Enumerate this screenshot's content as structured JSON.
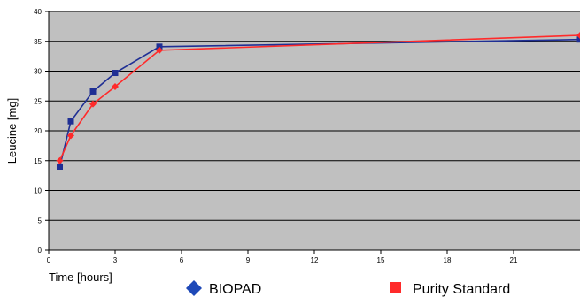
{
  "chart_data": {
    "type": "line",
    "title": "",
    "xlabel": "Time [hours]",
    "ylabel": "Leucine [mg]",
    "xlim": [
      0,
      24
    ],
    "ylim": [
      0,
      40
    ],
    "x_ticks": [
      "0",
      "3",
      "6",
      "9",
      "12",
      "15",
      "18",
      "21"
    ],
    "y_ticks": [
      "0",
      "5",
      "10",
      "15",
      "20",
      "25",
      "30",
      "35",
      "40"
    ],
    "grid": true,
    "legend": "bottom",
    "series": [
      {
        "name": "BIOPAD",
        "color": "#1f2f94",
        "marker": "square",
        "legend_marker": "diamond",
        "x": [
          0.5,
          1,
          2,
          3,
          5,
          24
        ],
        "y": [
          14,
          21.6,
          26.6,
          29.7,
          34.1,
          35.3
        ]
      },
      {
        "name": "Purity Standard",
        "color": "#ff2a2a",
        "marker": "diamond",
        "legend_marker": "square",
        "x": [
          0.5,
          1,
          2,
          3,
          5,
          24
        ],
        "y": [
          15,
          19.2,
          24.5,
          27.4,
          33.5,
          36
        ]
      }
    ]
  },
  "colors": {
    "plot_background": "#c0c0c0",
    "gridline": "#000000"
  }
}
